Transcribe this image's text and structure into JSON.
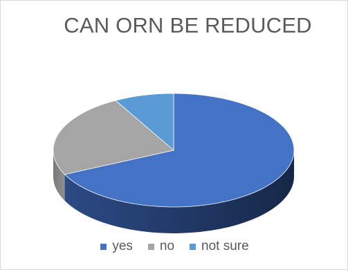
{
  "chart_data": {
    "type": "pie",
    "title": "CAN ORN BE REDUCED",
    "categories": [
      "yes",
      "no",
      "not sure"
    ],
    "values": [
      68,
      24,
      8
    ],
    "colors": [
      "#4472c4",
      "#a5a5a5",
      "#5b9bd5"
    ],
    "three_d": true,
    "legend_position": "bottom"
  }
}
